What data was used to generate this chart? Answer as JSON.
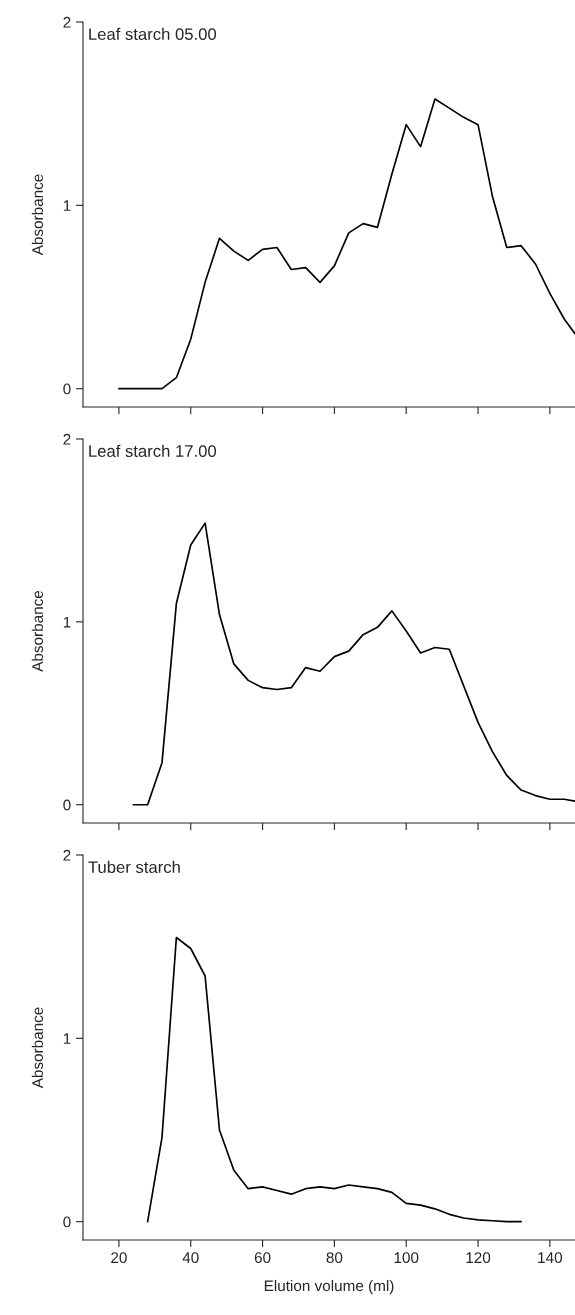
{
  "chart_data": [
    {
      "type": "line",
      "title": "Leaf starch 05.00",
      "ylabel": "Absorbance",
      "xlim": [
        10,
        147
      ],
      "xticks": [
        20,
        40,
        60,
        80,
        100,
        120,
        140
      ],
      "ylim": [
        -0.1,
        2
      ],
      "yticks": [
        0,
        1,
        2
      ],
      "tick_labels": "y",
      "grid": false,
      "marker": "none",
      "line_style": "solid",
      "series": [
        {
          "color": "#000000",
          "x": [
            20,
            24,
            28,
            32,
            36,
            40,
            44,
            48,
            52,
            56,
            60,
            64,
            68,
            72,
            76,
            80,
            84,
            88,
            92,
            96,
            100,
            104,
            108,
            112,
            116,
            120,
            124,
            128,
            132,
            136,
            140,
            144,
            147
          ],
          "values": [
            0,
            0,
            0,
            0,
            0.06,
            0.27,
            0.58,
            0.82,
            0.75,
            0.7,
            0.76,
            0.77,
            0.65,
            0.66,
            0.58,
            0.67,
            0.85,
            0.9,
            0.88,
            1.17,
            1.44,
            1.32,
            1.58,
            1.53,
            1.48,
            1.44,
            1.05,
            0.77,
            0.78,
            0.68,
            0.52,
            0.38,
            0.3
          ]
        }
      ]
    },
    {
      "type": "line",
      "title": "Leaf starch 17.00",
      "ylabel": "Absorbance",
      "xlim": [
        10,
        147
      ],
      "xticks": [
        20,
        40,
        60,
        80,
        100,
        120,
        140
      ],
      "ylim": [
        -0.1,
        2
      ],
      "yticks": [
        0,
        1,
        2
      ],
      "tick_labels": "y",
      "grid": false,
      "marker": "none",
      "line_style": "solid",
      "series": [
        {
          "color": "#000000",
          "x": [
            24,
            28,
            32,
            36,
            40,
            44,
            48,
            52,
            56,
            60,
            64,
            68,
            72,
            76,
            80,
            84,
            88,
            92,
            96,
            100,
            104,
            108,
            112,
            116,
            120,
            124,
            128,
            132,
            136,
            140,
            144,
            147
          ],
          "values": [
            0,
            0,
            0.23,
            1.1,
            1.42,
            1.54,
            1.04,
            0.77,
            0.68,
            0.64,
            0.63,
            0.64,
            0.75,
            0.73,
            0.81,
            0.84,
            0.93,
            0.97,
            1.06,
            0.95,
            0.83,
            0.86,
            0.85,
            0.65,
            0.45,
            0.29,
            0.16,
            0.08,
            0.05,
            0.03,
            0.03,
            0.02
          ]
        }
      ]
    },
    {
      "type": "line",
      "title": "Tuber starch",
      "ylabel": "Absorbance",
      "xlabel": "Elution volume (ml)",
      "xlim": [
        10,
        147
      ],
      "xticks": [
        20,
        40,
        60,
        80,
        100,
        120,
        140
      ],
      "ylim": [
        -0.1,
        2
      ],
      "yticks": [
        0,
        1,
        2
      ],
      "grid": false,
      "marker": "none",
      "line_style": "solid",
      "series": [
        {
          "color": "#000000",
          "x": [
            28,
            32,
            36,
            40,
            44,
            48,
            52,
            56,
            60,
            64,
            68,
            72,
            76,
            80,
            84,
            88,
            92,
            96,
            100,
            104,
            108,
            112,
            116,
            120,
            124,
            128,
            132
          ],
          "values": [
            0,
            0.46,
            1.55,
            1.49,
            1.34,
            0.5,
            0.28,
            0.18,
            0.19,
            0.17,
            0.15,
            0.18,
            0.19,
            0.18,
            0.2,
            0.19,
            0.18,
            0.16,
            0.1,
            0.09,
            0.07,
            0.04,
            0.02,
            0.01,
            0.005,
            0,
            0
          ]
        }
      ]
    }
  ]
}
